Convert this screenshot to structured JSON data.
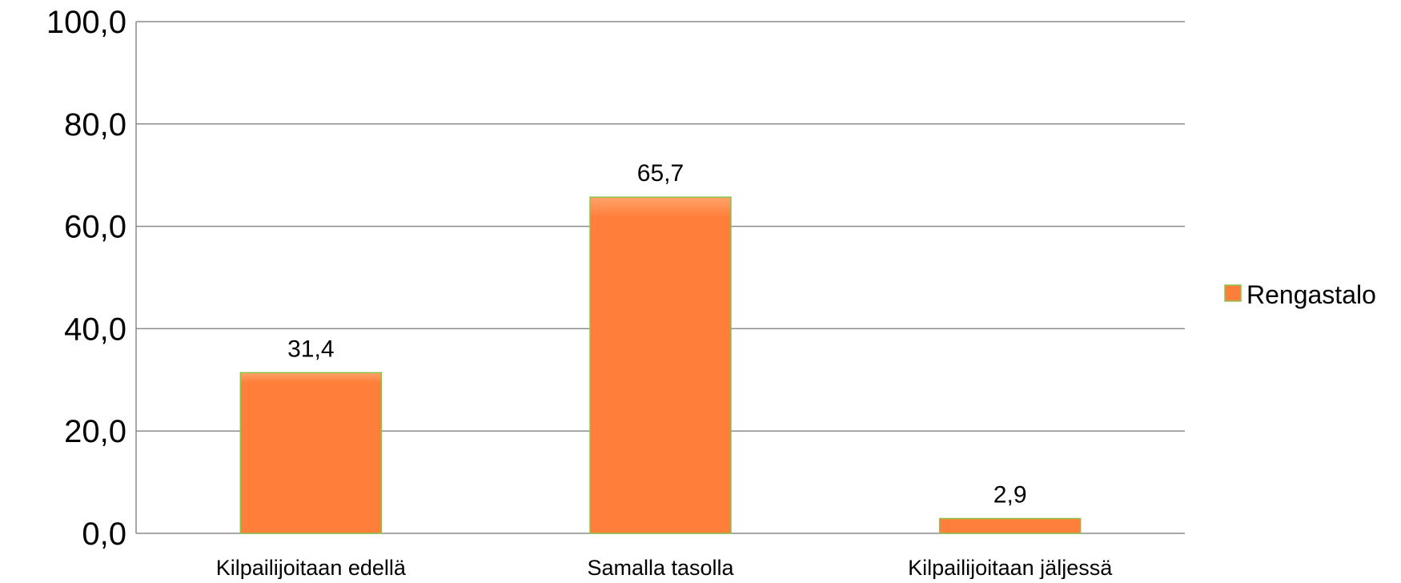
{
  "chart_data": {
    "type": "bar",
    "categories": [
      "Kilpailijoitaan edellä",
      "Samalla tasolla",
      "Kilpailijoitaan jäljessä"
    ],
    "series": [
      {
        "name": "Rengastalo",
        "values": [
          31.4,
          65.7,
          2.9
        ],
        "value_labels": [
          "31,4",
          "65,7",
          "2,9"
        ],
        "color": "#FF7F3A",
        "edge_color": "#8BC34A"
      }
    ],
    "ylim": [
      0,
      100
    ],
    "yticks": [
      0,
      20,
      40,
      60,
      80,
      100
    ],
    "ytick_labels": [
      "0,0",
      "20,0",
      "40,0",
      "60,0",
      "80,0",
      "100,0"
    ],
    "grid": true,
    "gridline_color": "#8C8C8C",
    "legend_position": "right"
  }
}
